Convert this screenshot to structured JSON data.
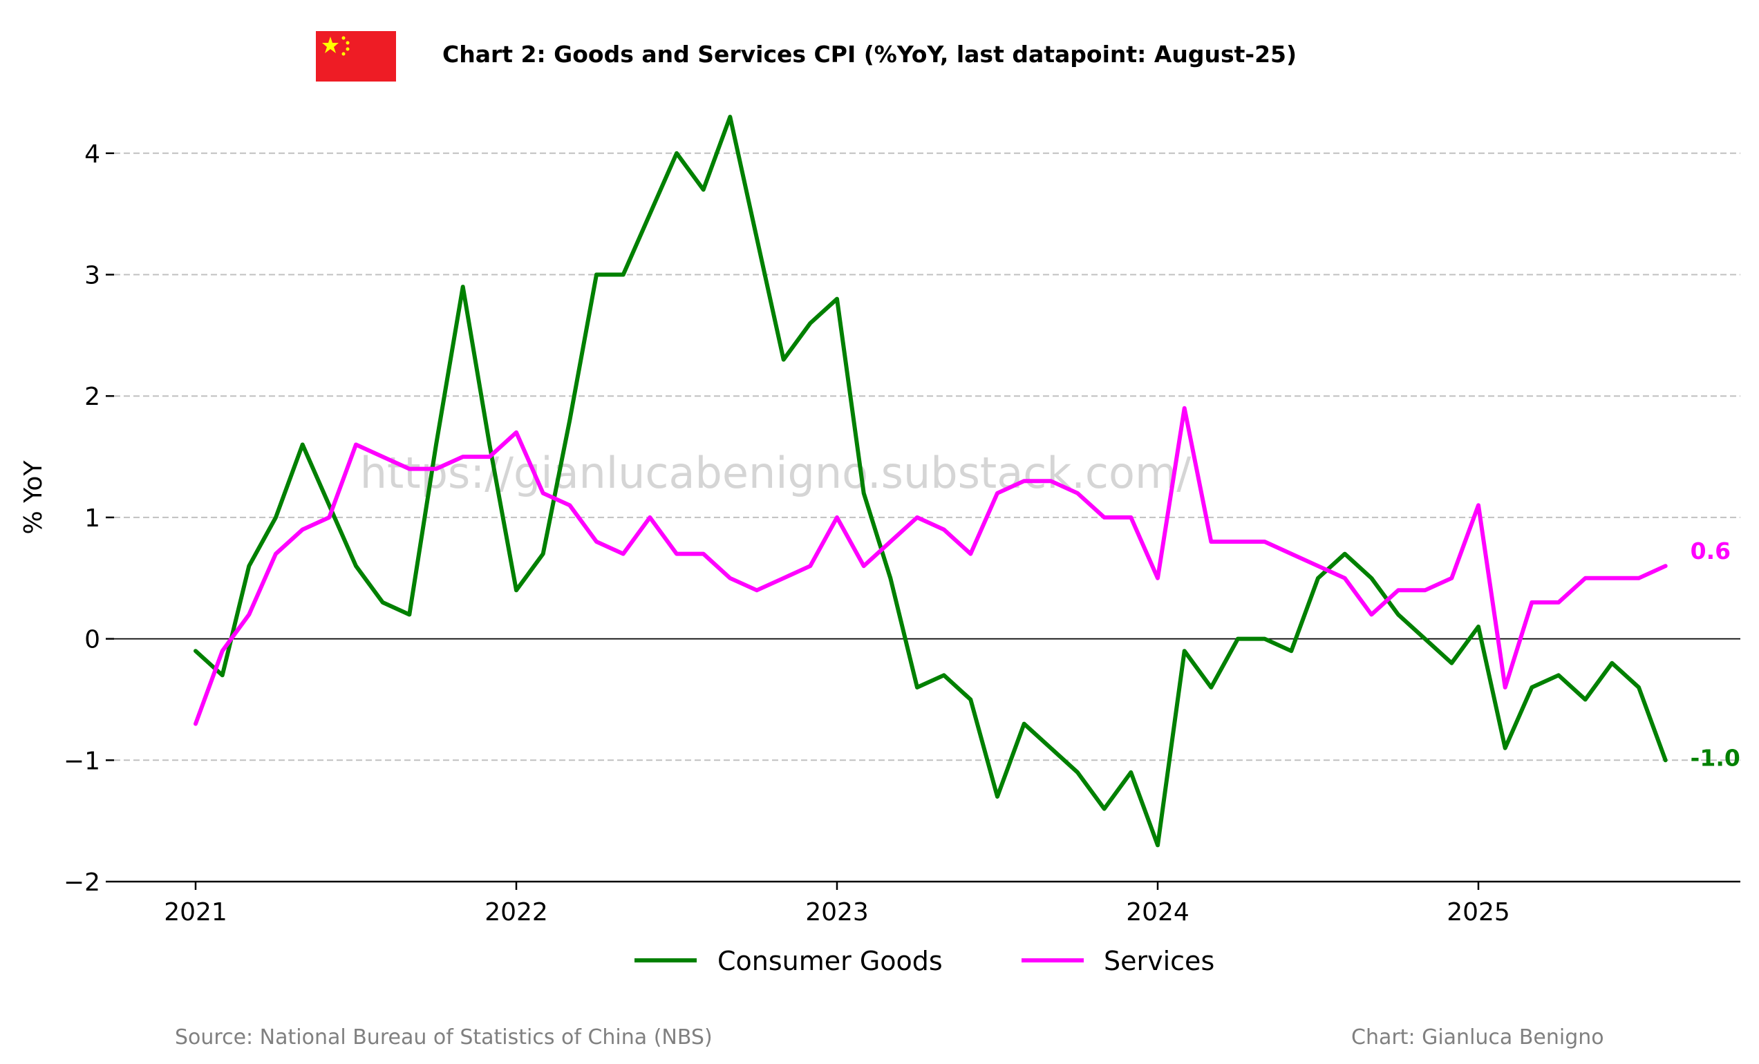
{
  "title": "Chart 2: Goods and Services CPI (%YoY, last datapoint: August-25)",
  "watermark": "https://gianlucabenigno.substack.com/",
  "source": "Source: National Bureau of Statistics of China (NBS)",
  "credit": "Chart: Gianluca Benigno",
  "flag_icon": "china-flag-icon",
  "chart_data": {
    "type": "line",
    "ylabel": "% YoY",
    "ylim": [
      -2,
      4.4
    ],
    "yticks": [
      -2,
      -1,
      0,
      1,
      2,
      3,
      4
    ],
    "ytick_labels": [
      "−2",
      "−1",
      "0",
      "1",
      "2",
      "3",
      "4"
    ],
    "xticks": [
      "2021",
      "2022",
      "2023",
      "2024",
      "2025"
    ],
    "x_start": "2021-01",
    "grid": "horizontal dashed",
    "legend_position": "bottom-center",
    "series": [
      {
        "name": "Consumer Goods",
        "color": "#008000",
        "end_label": "-1.0",
        "values": [
          -0.1,
          -0.3,
          0.6,
          1.0,
          1.6,
          1.1,
          0.6,
          0.3,
          0.2,
          1.6,
          2.9,
          1.6,
          0.4,
          0.7,
          1.8,
          3.0,
          3.0,
          3.5,
          4.0,
          3.7,
          4.3,
          3.3,
          2.3,
          2.6,
          2.8,
          1.2,
          0.5,
          -0.4,
          -0.3,
          -0.5,
          -1.3,
          -0.7,
          -0.9,
          -1.1,
          -1.4,
          -1.1,
          -1.7,
          -0.1,
          -0.4,
          0.0,
          0.0,
          -0.1,
          0.5,
          0.7,
          0.5,
          0.2,
          0.0,
          -0.2,
          0.1,
          -0.9,
          -0.4,
          -0.3,
          -0.5,
          -0.2,
          -0.4,
          -1.0
        ]
      },
      {
        "name": "Services",
        "color": "#ff00ff",
        "end_label": "0.6",
        "values": [
          -0.7,
          -0.1,
          0.2,
          0.7,
          0.9,
          1.0,
          1.6,
          1.5,
          1.4,
          1.4,
          1.5,
          1.5,
          1.7,
          1.2,
          1.1,
          0.8,
          0.7,
          1.0,
          0.7,
          0.7,
          0.5,
          0.4,
          0.5,
          0.6,
          1.0,
          0.6,
          0.8,
          1.0,
          0.9,
          0.7,
          1.2,
          1.3,
          1.3,
          1.2,
          1.0,
          1.0,
          0.5,
          1.9,
          0.8,
          0.8,
          0.8,
          0.7,
          0.6,
          0.5,
          0.2,
          0.4,
          0.4,
          0.5,
          1.1,
          -0.4,
          0.3,
          0.3,
          0.5,
          0.5,
          0.5,
          0.6
        ]
      }
    ]
  }
}
